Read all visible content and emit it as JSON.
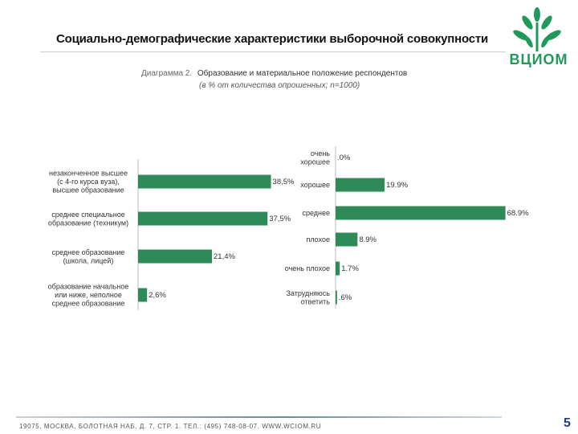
{
  "header": {
    "title": "Социально-демографические характеристики выборочной совокупности",
    "logo_text": "ВЦИОМ"
  },
  "chart_title": {
    "prefix": "Диаграмма 2.",
    "main": "Образование и материальное положение респондентов",
    "subtitle": "(в % от количества опрошенных; n=1000)"
  },
  "colors": {
    "bar": "#2e8b57",
    "bar_light": "#3fa86a",
    "logo": "#1f9a5a"
  },
  "chart_data": [
    {
      "type": "bar",
      "orientation": "horizontal",
      "categories": [
        "незаконченное высшее (с 4-го курса вуза), высшее образование",
        "среднее специальное образование (техникум)",
        "среднее образование (школа, лицей)",
        "образование начальное или ниже, неполное среднее образование"
      ],
      "values": [
        38.5,
        37.5,
        21.4,
        2.6
      ],
      "value_labels": [
        "38,5%",
        "37,5%",
        "21,4%",
        "2,6%"
      ],
      "xlim": [
        0,
        40
      ]
    },
    {
      "type": "bar",
      "orientation": "horizontal",
      "categories": [
        "очень хорошее",
        "хорошее",
        "среднее",
        "плохое",
        "очень плохое",
        "Затрудняюсь ответить"
      ],
      "values": [
        0.0,
        19.9,
        68.9,
        8.9,
        1.7,
        0.6
      ],
      "value_labels": [
        ".0%",
        "19.9%",
        "68.9%",
        "8.9%",
        "1.7%",
        ".6%"
      ],
      "xlim": [
        0,
        70
      ]
    }
  ],
  "footer": {
    "address": "19075, МОСКВА, БОЛОТНАЯ НАБ. Д. 7, СТР. 1. ТЕЛ.: (495) 748-08-07. WWW.WCIOM.RU",
    "page_number": "5"
  }
}
